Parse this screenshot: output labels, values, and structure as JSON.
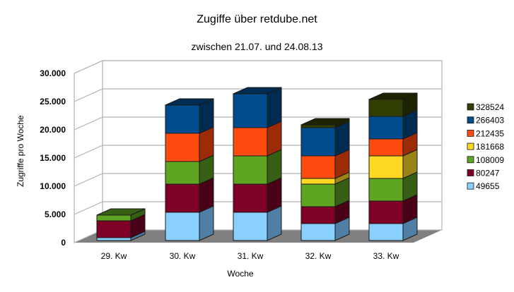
{
  "chart_data": {
    "type": "bar",
    "stacked": true,
    "three_d": true,
    "title": "Zugiffe über retdube.net",
    "subtitle": "zwischen 21.07. und 24.08.13",
    "xlabel": "Woche",
    "ylabel": "Zugriffe pro Woche",
    "ylim": [
      0,
      30000
    ],
    "yticks": [
      0,
      5000,
      10000,
      15000,
      20000,
      25000,
      30000
    ],
    "ytick_labels": [
      "0",
      "5.000",
      "10.000",
      "15.000",
      "20.000",
      "25.000",
      "30.000"
    ],
    "grid": true,
    "legend_position": "right",
    "categories": [
      "29. Kw",
      "30. Kw",
      "31. Kw",
      "32. Kw",
      "33. Kw"
    ],
    "series": [
      {
        "name": "49655",
        "color": "#8ad0ff",
        "side": "#4f7fa2",
        "values": [
          500,
          5000,
          5000,
          3000,
          3000
        ]
      },
      {
        "name": "80247",
        "color": "#7f0026",
        "side": "#4a0016",
        "values": [
          3000,
          5000,
          5000,
          3000,
          4000
        ]
      },
      {
        "name": "108009",
        "color": "#5ea521",
        "side": "#365f13",
        "values": [
          1000,
          4000,
          5000,
          4000,
          4000
        ]
      },
      {
        "name": "181668",
        "color": "#ffd822",
        "side": "#9a8418",
        "values": [
          0,
          0,
          0,
          1000,
          4000
        ]
      },
      {
        "name": "212435",
        "color": "#ff4a10",
        "side": "#9c2c08",
        "values": [
          0,
          5000,
          5000,
          4000,
          3000
        ]
      },
      {
        "name": "266403",
        "color": "#004c8c",
        "side": "#002c52",
        "values": [
          0,
          5000,
          6000,
          5000,
          4000
        ]
      },
      {
        "name": "328524",
        "color": "#313e02",
        "side": "#1c2301",
        "values": [
          0,
          0,
          0,
          500,
          3000
        ]
      }
    ]
  },
  "header": {
    "title": "Zugiffe über retdube.net",
    "subtitle": "zwischen 21.07. und 24.08.13"
  },
  "axes": {
    "x_title": "Woche",
    "y_title": "Zugriffe pro Woche",
    "y_ticks": [
      "0",
      "5.000",
      "10.000",
      "15.000",
      "20.000",
      "25.000",
      "30.000"
    ],
    "x_ticks": [
      "29. Kw",
      "30. Kw",
      "31. Kw",
      "32. Kw",
      "33. Kw"
    ]
  },
  "legend": [
    {
      "label": "328524",
      "color": "#313e02"
    },
    {
      "label": "266403",
      "color": "#004c8c"
    },
    {
      "label": "212435",
      "color": "#ff4a10"
    },
    {
      "label": "181668",
      "color": "#ffd822"
    },
    {
      "label": "108009",
      "color": "#5ea521"
    },
    {
      "label": "80247",
      "color": "#7f0026"
    },
    {
      "label": "49655",
      "color": "#8ad0ff"
    }
  ]
}
